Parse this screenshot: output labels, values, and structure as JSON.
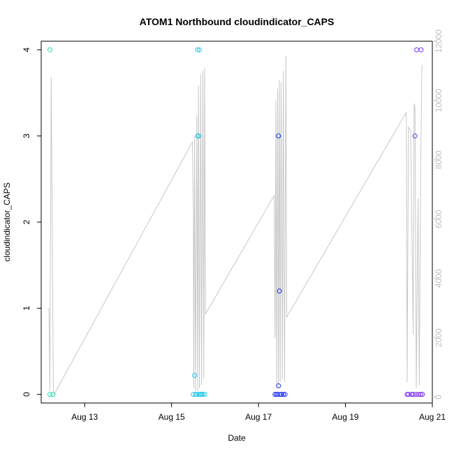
{
  "chart_data": {
    "type": "scatter",
    "title": "ATOM1 Northbound cloudindicator_CAPS",
    "xlabel": "Date",
    "ylabel": "cloudindicator_CAPS",
    "x_ticks": [
      "Aug 13",
      "Aug 15",
      "Aug 17",
      "Aug 19",
      "Aug 21"
    ],
    "x_tick_values": [
      13,
      15,
      17,
      19,
      21
    ],
    "xlim": [
      12.0,
      21.0
    ],
    "y_ticks": [
      "0",
      "1",
      "2",
      "3",
      "4"
    ],
    "y_tick_values": [
      0,
      1,
      2,
      3,
      4
    ],
    "ylim": [
      -0.1,
      4.1
    ],
    "y2_ticks": [
      "0",
      "2000",
      "4000",
      "6000",
      "8000",
      "10000",
      "12000"
    ],
    "y2_tick_values": [
      0,
      2000,
      4000,
      6000,
      8000,
      10000,
      12000
    ],
    "y2lim": [
      -200,
      12000
    ],
    "colors": {
      "line": "#c8c8c8",
      "axis": "#000000",
      "right_axis": "#c0c0c0"
    },
    "series": [
      {
        "color": "#22e0b0",
        "points": [
          [
            12.2,
            4
          ],
          [
            12.2,
            0
          ],
          [
            12.27,
            0
          ]
        ]
      },
      {
        "color": "#22c8e6",
        "points": [
          [
            15.53,
            0.22
          ],
          [
            15.5,
            0
          ],
          [
            15.55,
            0
          ],
          [
            15.58,
            0
          ],
          [
            15.6,
            4
          ],
          [
            15.64,
            4
          ],
          [
            15.6,
            3
          ],
          [
            15.63,
            3
          ],
          [
            15.63,
            0
          ],
          [
            15.66,
            0
          ],
          [
            15.69,
            0
          ],
          [
            15.72,
            0
          ],
          [
            15.76,
            0
          ]
        ]
      },
      {
        "color": "#2233f0",
        "points": [
          [
            17.38,
            0
          ],
          [
            17.41,
            0
          ],
          [
            17.44,
            0
          ],
          [
            17.46,
            3
          ],
          [
            17.46,
            0.1
          ],
          [
            17.48,
            1.2
          ],
          [
            17.5,
            0
          ],
          [
            17.53,
            0
          ],
          [
            17.57,
            0
          ],
          [
            17.61,
            0
          ]
        ]
      },
      {
        "color": "#7a2ef0",
        "points": [
          [
            20.42,
            0
          ],
          [
            20.45,
            0
          ],
          [
            20.52,
            0
          ],
          [
            20.56,
            0
          ],
          [
            20.6,
            3
          ],
          [
            20.62,
            0
          ],
          [
            20.64,
            4
          ],
          [
            20.68,
            0
          ],
          [
            20.74,
            4
          ],
          [
            20.73,
            0
          ],
          [
            20.77,
            0
          ]
        ]
      }
    ],
    "line_series": {
      "axis": "right",
      "points": [
        [
          12.18,
          3000
        ],
        [
          12.2,
          200
        ],
        [
          12.23,
          10800
        ],
        [
          12.28,
          200
        ],
        [
          12.3,
          100
        ],
        [
          15.48,
          8600
        ],
        [
          15.5,
          6300
        ],
        [
          15.51,
          300
        ],
        [
          15.53,
          8800
        ],
        [
          15.55,
          200
        ],
        [
          15.58,
          9500
        ],
        [
          15.6,
          200
        ],
        [
          15.62,
          10500
        ],
        [
          15.64,
          300
        ],
        [
          15.67,
          10900
        ],
        [
          15.69,
          400
        ],
        [
          15.72,
          11000
        ],
        [
          15.74,
          600
        ],
        [
          15.76,
          11100
        ],
        [
          15.78,
          2800
        ],
        [
          17.36,
          6800
        ],
        [
          17.38,
          2000
        ],
        [
          17.4,
          10000
        ],
        [
          17.42,
          300
        ],
        [
          17.44,
          10400
        ],
        [
          17.46,
          300
        ],
        [
          17.48,
          10700
        ],
        [
          17.5,
          500
        ],
        [
          17.52,
          10600
        ],
        [
          17.55,
          600
        ],
        [
          17.57,
          11000
        ],
        [
          17.6,
          500
        ],
        [
          17.63,
          11500
        ],
        [
          17.65,
          2700
        ],
        [
          20.4,
          9600
        ],
        [
          20.42,
          500
        ],
        [
          20.45,
          9100
        ],
        [
          20.5,
          9000
        ],
        [
          20.56,
          2100
        ],
        [
          20.58,
          9900
        ],
        [
          20.6,
          9800
        ],
        [
          20.63,
          300
        ],
        [
          20.67,
          6700
        ],
        [
          20.7,
          400
        ],
        [
          20.73,
          7500
        ],
        [
          20.76,
          11200
        ]
      ]
    }
  }
}
